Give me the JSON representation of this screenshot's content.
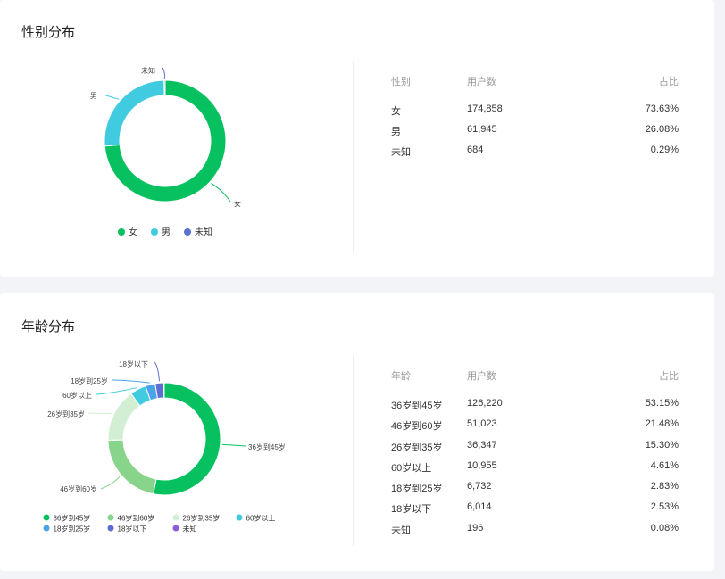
{
  "gender": {
    "title": "性别分布",
    "table": {
      "headers": [
        "性别",
        "用户数",
        "占比"
      ],
      "rows": [
        {
          "label": "女",
          "count": "174,858",
          "pct": "73.63%"
        },
        {
          "label": "男",
          "count": "61,945",
          "pct": "26.08%"
        },
        {
          "label": "未知",
          "count": "684",
          "pct": "0.29%"
        }
      ]
    }
  },
  "age": {
    "title": "年龄分布",
    "table": {
      "headers": [
        "年龄",
        "用户数",
        "占比"
      ],
      "rows": [
        {
          "label": "36岁到45岁",
          "count": "126,220",
          "pct": "53.15%"
        },
        {
          "label": "46岁到60岁",
          "count": "51,023",
          "pct": "21.48%"
        },
        {
          "label": "26岁到35岁",
          "count": "36,347",
          "pct": "15.30%"
        },
        {
          "label": "60岁以上",
          "count": "10,955",
          "pct": "4.61%"
        },
        {
          "label": "18岁到25岁",
          "count": "6,732",
          "pct": "2.83%"
        },
        {
          "label": "18岁以下",
          "count": "6,014",
          "pct": "2.53%"
        },
        {
          "label": "未知",
          "count": "196",
          "pct": "0.08%"
        }
      ]
    }
  },
  "chart_data": [
    {
      "type": "pie",
      "title": "性别分布",
      "categories": [
        "女",
        "男",
        "未知"
      ],
      "values": [
        174858,
        61945,
        684
      ],
      "colors": [
        "#07c160",
        "#40cbe0",
        "#5b6fd0"
      ],
      "legend": "bottom"
    },
    {
      "type": "pie",
      "title": "年龄分布",
      "categories": [
        "36岁到45岁",
        "46岁到60岁",
        "26岁到35岁",
        "60岁以上",
        "18岁到25岁",
        "18岁以下",
        "未知"
      ],
      "values": [
        126220,
        51023,
        36347,
        10955,
        6732,
        6014,
        196
      ],
      "colors": [
        "#07c160",
        "#88d48a",
        "#d3efd3",
        "#40cbe0",
        "#4aa3e8",
        "#5b6fd0",
        "#8a5fd6"
      ],
      "legend": "bottom"
    }
  ]
}
